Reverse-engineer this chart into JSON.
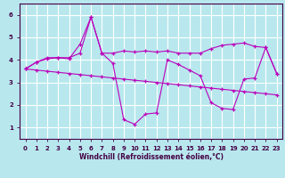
{
  "xlabel": "Windchill (Refroidissement éolien,°C)",
  "background_color": "#b8e8ee",
  "grid_color": "#ffffff",
  "line_color": "#bb00bb",
  "xlim": [
    -0.5,
    23.5
  ],
  "ylim": [
    0.5,
    6.5
  ],
  "xticks": [
    0,
    1,
    2,
    3,
    4,
    5,
    6,
    7,
    8,
    9,
    10,
    11,
    12,
    13,
    14,
    15,
    16,
    17,
    18,
    19,
    20,
    21,
    22,
    23
  ],
  "yticks": [
    1,
    2,
    3,
    4,
    5,
    6
  ],
  "series": [
    [
      3.6,
      3.9,
      4.1,
      4.1,
      4.05,
      4.7,
      5.9,
      4.3,
      3.85,
      1.35,
      1.15,
      1.6,
      1.65,
      4.0,
      3.8,
      3.55,
      3.3,
      2.1,
      1.85,
      1.8,
      3.15,
      3.2,
      4.55,
      3.4
    ],
    [
      3.6,
      3.55,
      3.5,
      3.45,
      3.4,
      3.35,
      3.3,
      3.25,
      3.2,
      3.15,
      3.1,
      3.05,
      3.0,
      2.95,
      2.9,
      2.85,
      2.8,
      2.75,
      2.7,
      2.65,
      2.6,
      2.55,
      2.5,
      2.45
    ],
    [
      3.6,
      3.9,
      4.05,
      4.1,
      4.1,
      4.3,
      5.9,
      4.3,
      4.3,
      4.4,
      4.35,
      4.4,
      4.35,
      4.4,
      4.3,
      4.3,
      4.3,
      4.5,
      4.65,
      4.7,
      4.75,
      4.6,
      4.55,
      3.4
    ]
  ]
}
